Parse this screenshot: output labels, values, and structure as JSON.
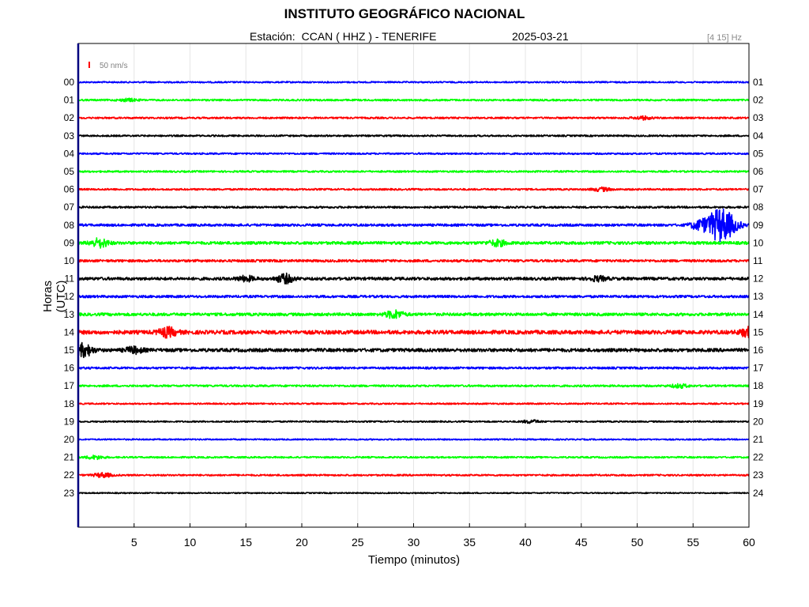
{
  "title": "INSTITUTO GEOGRÁFICO NACIONAL",
  "station_label": "Estación:",
  "station": "CCAN ( HHZ ) - TENERIFE",
  "date": "2025-03-21",
  "filter": "[4 15] Hz",
  "scale_label": "50 nm/s",
  "colors": {
    "trace_cycle": [
      "#0000ff",
      "#00ff00",
      "#ff0000",
      "#000000"
    ],
    "scale_bar": "#ff0000",
    "frame": "#00007f",
    "grid": "#e6e6e6",
    "filter_text": "#8a8a8a"
  },
  "chart_data": {
    "type": "line",
    "title": "INSTITUTO GEOGRÁFICO NACIONAL",
    "xlabel": "Tiempo (minutos)",
    "ylabel": "Horas (UTC)",
    "xlim": [
      0,
      60
    ],
    "x_ticks": [
      "5",
      "10",
      "15",
      "20",
      "25",
      "30",
      "35",
      "40",
      "45",
      "50",
      "55",
      "60"
    ],
    "y_left_labels": [
      "00",
      "01",
      "02",
      "03",
      "04",
      "05",
      "06",
      "07",
      "08",
      "09",
      "10",
      "11",
      "12",
      "13",
      "14",
      "15",
      "16",
      "17",
      "18",
      "19",
      "20",
      "21",
      "22",
      "23"
    ],
    "y_right_labels": [
      "01",
      "02",
      "03",
      "04",
      "05",
      "06",
      "07",
      "08",
      "09",
      "10",
      "11",
      "12",
      "13",
      "14",
      "15",
      "16",
      "17",
      "18",
      "19",
      "20",
      "21",
      "22",
      "23",
      "24"
    ],
    "grid": true,
    "series": [
      {
        "hour": 0,
        "color": "#0000ff",
        "base_amplitude": 0.15,
        "events": []
      },
      {
        "hour": 1,
        "color": "#00ff00",
        "base_amplitude": 0.18,
        "events": [
          {
            "minute": 4.5,
            "amplitude": 0.25
          }
        ]
      },
      {
        "hour": 2,
        "color": "#ff0000",
        "base_amplitude": 0.18,
        "events": [
          {
            "minute": 50.5,
            "amplitude": 0.3
          }
        ]
      },
      {
        "hour": 3,
        "color": "#000000",
        "base_amplitude": 0.17,
        "events": []
      },
      {
        "hour": 4,
        "color": "#0000ff",
        "base_amplitude": 0.17,
        "events": []
      },
      {
        "hour": 5,
        "color": "#00ff00",
        "base_amplitude": 0.18,
        "events": []
      },
      {
        "hour": 6,
        "color": "#ff0000",
        "base_amplitude": 0.18,
        "events": [
          {
            "minute": 46.8,
            "amplitude": 0.35
          }
        ]
      },
      {
        "hour": 7,
        "color": "#000000",
        "base_amplitude": 0.2,
        "events": []
      },
      {
        "hour": 8,
        "color": "#0000ff",
        "base_amplitude": 0.25,
        "events": [
          {
            "minute": 55.5,
            "amplitude": 0.8
          },
          {
            "minute": 57.5,
            "amplitude": 3.5
          }
        ]
      },
      {
        "hour": 9,
        "color": "#00ff00",
        "base_amplitude": 0.3,
        "events": [
          {
            "minute": 1.9,
            "amplitude": 0.9
          },
          {
            "minute": 37.5,
            "amplitude": 0.6
          }
        ]
      },
      {
        "hour": 10,
        "color": "#ff0000",
        "base_amplitude": 0.25,
        "events": []
      },
      {
        "hour": 11,
        "color": "#000000",
        "base_amplitude": 0.3,
        "events": [
          {
            "minute": 15.0,
            "amplitude": 0.5
          },
          {
            "minute": 18.5,
            "amplitude": 0.9
          },
          {
            "minute": 46.5,
            "amplitude": 0.45
          }
        ]
      },
      {
        "hour": 12,
        "color": "#0000ff",
        "base_amplitude": 0.25,
        "events": []
      },
      {
        "hour": 13,
        "color": "#00ff00",
        "base_amplitude": 0.3,
        "events": [
          {
            "minute": 28.3,
            "amplitude": 0.8
          }
        ]
      },
      {
        "hour": 14,
        "color": "#ff0000",
        "base_amplitude": 0.4,
        "events": [
          {
            "minute": 8.0,
            "amplitude": 0.9
          },
          {
            "minute": 60.0,
            "amplitude": 0.9
          }
        ]
      },
      {
        "hour": 15,
        "color": "#000000",
        "base_amplitude": 0.35,
        "events": [
          {
            "minute": 0.5,
            "amplitude": 1.3
          },
          {
            "minute": 5.0,
            "amplitude": 0.6
          }
        ]
      },
      {
        "hour": 16,
        "color": "#0000ff",
        "base_amplitude": 0.22,
        "events": []
      },
      {
        "hour": 17,
        "color": "#00ff00",
        "base_amplitude": 0.2,
        "events": [
          {
            "minute": 53.8,
            "amplitude": 0.35
          }
        ]
      },
      {
        "hour": 18,
        "color": "#ff0000",
        "base_amplitude": 0.15,
        "events": []
      },
      {
        "hour": 19,
        "color": "#000000",
        "base_amplitude": 0.15,
        "events": [
          {
            "minute": 40.5,
            "amplitude": 0.3
          }
        ]
      },
      {
        "hour": 20,
        "color": "#0000ff",
        "base_amplitude": 0.14,
        "events": []
      },
      {
        "hour": 21,
        "color": "#00ff00",
        "base_amplitude": 0.17,
        "events": [
          {
            "minute": 1.5,
            "amplitude": 0.35
          }
        ]
      },
      {
        "hour": 22,
        "color": "#ff0000",
        "base_amplitude": 0.17,
        "events": [
          {
            "minute": 2.2,
            "amplitude": 0.45
          }
        ]
      },
      {
        "hour": 23,
        "color": "#000000",
        "base_amplitude": 0.12,
        "events": []
      }
    ]
  }
}
